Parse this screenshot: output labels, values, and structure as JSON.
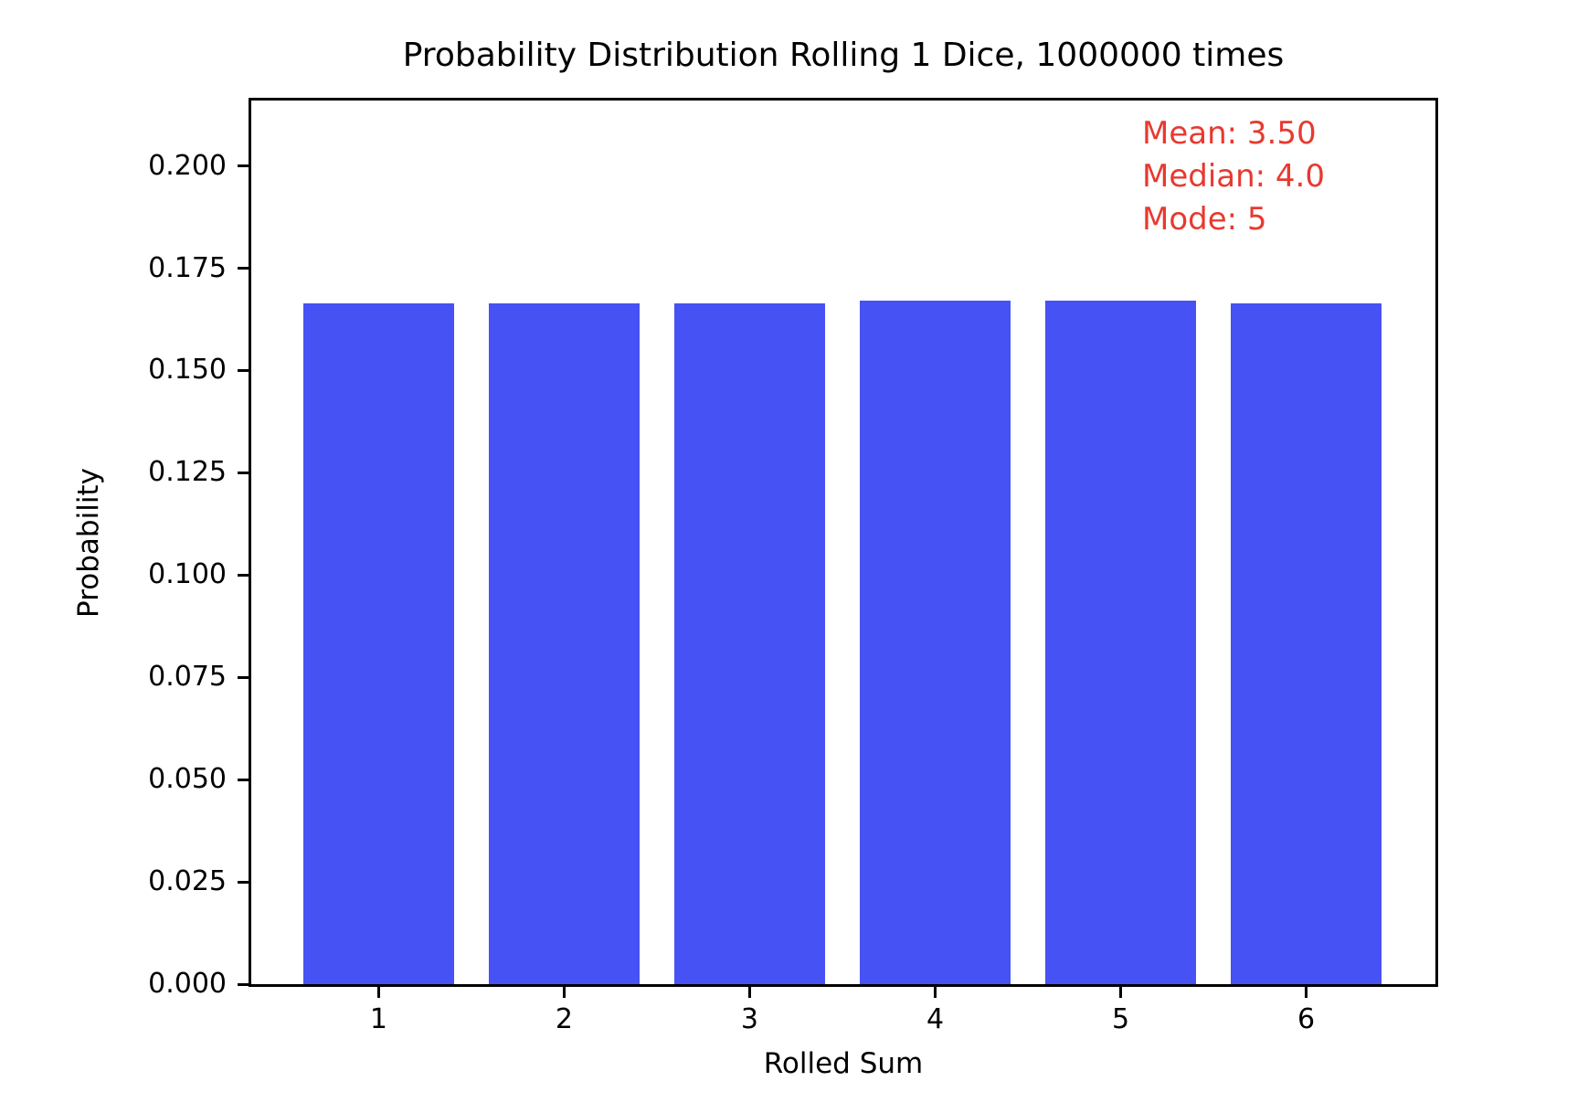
{
  "figure": {
    "background": "#ffffff"
  },
  "chart_data": {
    "type": "bar",
    "title": "Probability Distribution Rolling 1 Dice, 1000000 times",
    "xlabel": "Rolled Sum",
    "ylabel": "Probability",
    "categories": [
      "1",
      "2",
      "3",
      "4",
      "5",
      "6"
    ],
    "values": [
      0.1665,
      0.1664,
      0.16645,
      0.167,
      0.16715,
      0.1665
    ],
    "bar_color": "#4652f3",
    "bar_width_fraction": 0.81,
    "xlim": [
      0.313,
      6.697
    ],
    "ylim": [
      0,
      0.216
    ],
    "ytick_values": [
      0.0,
      0.025,
      0.05,
      0.075,
      0.1,
      0.125,
      0.15,
      0.175,
      0.2
    ],
    "ytick_labels": [
      "0.000",
      "0.025",
      "0.050",
      "0.075",
      "0.100",
      "0.125",
      "0.150",
      "0.175",
      "0.200"
    ],
    "grid": false,
    "legend": null,
    "annotation_color": "#e8392f",
    "annotations": [
      {
        "text": "Mean: 3.50"
      },
      {
        "text": "Median: 4.0"
      },
      {
        "text": "Mode: 5"
      }
    ]
  }
}
